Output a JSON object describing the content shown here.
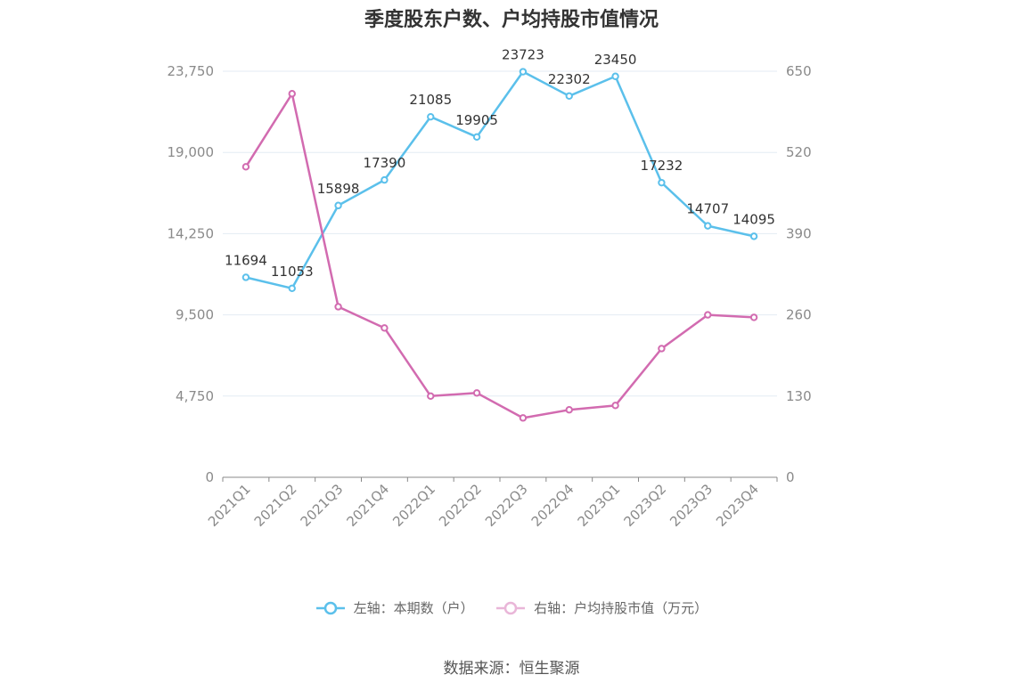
{
  "title": "季度股东户数、户均持股市值情况",
  "source": "数据来源：恒生聚源",
  "legend": {
    "left": "左轴：本期数（户）",
    "right": "右轴：户均持股市值（万元）"
  },
  "colors": {
    "left": "#5bc0eb",
    "right": "#d26bb0",
    "grid": "#e3ebf3",
    "axis": "#888888"
  },
  "chart_data": {
    "type": "line",
    "categories": [
      "2021Q1",
      "2021Q2",
      "2021Q3",
      "2021Q4",
      "2022Q1",
      "2022Q2",
      "2022Q3",
      "2022Q4",
      "2023Q1",
      "2023Q2",
      "2023Q3",
      "2023Q4"
    ],
    "series": [
      {
        "name": "左轴：本期数（户）",
        "axis": "left",
        "values": [
          11694,
          11053,
          15898,
          17390,
          21085,
          19905,
          23723,
          22302,
          23450,
          17232,
          14707,
          14095
        ]
      },
      {
        "name": "右轴：户均持股市值（万元）",
        "axis": "right",
        "values": [
          497,
          614,
          273,
          239,
          130,
          135,
          95,
          108,
          115,
          206,
          260,
          256
        ]
      }
    ],
    "left_axis": {
      "ticks": [
        "0",
        "4,750",
        "9,500",
        "14,250",
        "19,000",
        "23,750"
      ],
      "ylim": [
        0,
        23750
      ]
    },
    "right_axis": {
      "ticks": [
        "0",
        "130",
        "260",
        "390",
        "520",
        "650"
      ],
      "ylim": [
        0,
        650
      ]
    },
    "grid": true,
    "legend_position": "bottom-center"
  }
}
